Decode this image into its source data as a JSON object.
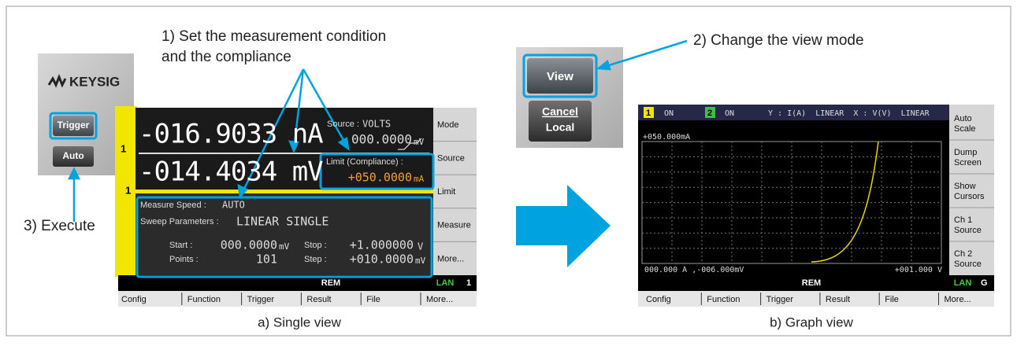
{
  "annotations": {
    "step1": [
      "1) Set the measurement condition",
      "and the compliance"
    ],
    "step2": "2) Change the view mode",
    "step3": "3) Execute"
  },
  "single_view": {
    "caption": "a) Single view",
    "logo": "KEYSIG",
    "keys": [
      "Trigger",
      "Auto"
    ],
    "channels": [
      "1",
      "1"
    ],
    "current": "-016.9033 nA",
    "voltage": "-014.4034 mV",
    "source_label": "Source :",
    "source_mode": "VOLTS",
    "source_value": "000.0000",
    "source_unit": "mV",
    "limit_label": "Limit (Compliance) :",
    "limit_value": "+050.0000",
    "limit_unit": "mA",
    "measure_speed_label": "Measure Speed :",
    "measure_speed": "AUTO",
    "sweep_label": "Sweep Parameters :",
    "sweep": "LINEAR SINGLE",
    "start_label": "Start :",
    "start_value": "000.0000",
    "start_unit": "mV",
    "stop_label": "Stop :",
    "stop_value": "+1.000000",
    "stop_unit": "V",
    "points_label": "Points :",
    "points": "101",
    "step_label": "Step :",
    "step_value": "+010.0000",
    "step_unit": "mV",
    "softkeys": [
      "Mode",
      "Source",
      "Limit",
      "Measure",
      "More..."
    ],
    "status": [
      "REM",
      "LAN",
      "1"
    ],
    "menu": [
      "Config",
      "Function",
      "Trigger",
      "Result",
      "File",
      "More..."
    ]
  },
  "keys": {
    "view": "View",
    "cancel": "Cancel",
    "local": "Local"
  },
  "graph_view": {
    "caption": "b) Graph view",
    "channels": [
      {
        "number": "1",
        "state": "ON"
      },
      {
        "number": "2",
        "state": "ON"
      }
    ],
    "axes": "Y : I(A)  LINEAR  X : V(V)  LINEAR",
    "y_max": "+050.000mA",
    "origin": "000.000 A ,-006.000mV",
    "x_max": "+001.000 V",
    "softkeys": [
      [
        "Auto",
        "Scale"
      ],
      [
        "Dump",
        "Screen"
      ],
      [
        "Show",
        "Cursors"
      ],
      [
        "Ch 1",
        "Source"
      ],
      [
        "Ch 2",
        "Source"
      ]
    ],
    "status": [
      "REM",
      "LAN",
      "G"
    ],
    "menu": [
      "Config",
      "Function",
      "Trigger",
      "Result",
      "File",
      "More..."
    ]
  }
}
